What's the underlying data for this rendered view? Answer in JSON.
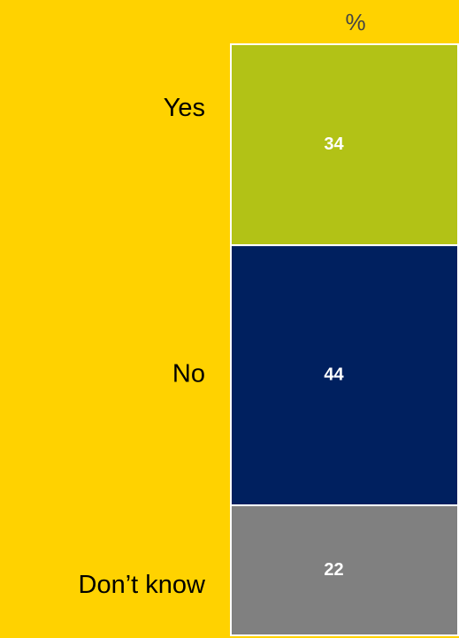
{
  "chart_data": {
    "type": "bar",
    "stacked": true,
    "title": "%",
    "series": [
      {
        "name": "Yes",
        "color": "#b2c216",
        "values": [
          34
        ]
      },
      {
        "name": "No",
        "color": "#00205f",
        "values": [
          44
        ]
      },
      {
        "name": "Don’t know",
        "color": "#808080",
        "values": [
          22
        ]
      }
    ]
  }
}
